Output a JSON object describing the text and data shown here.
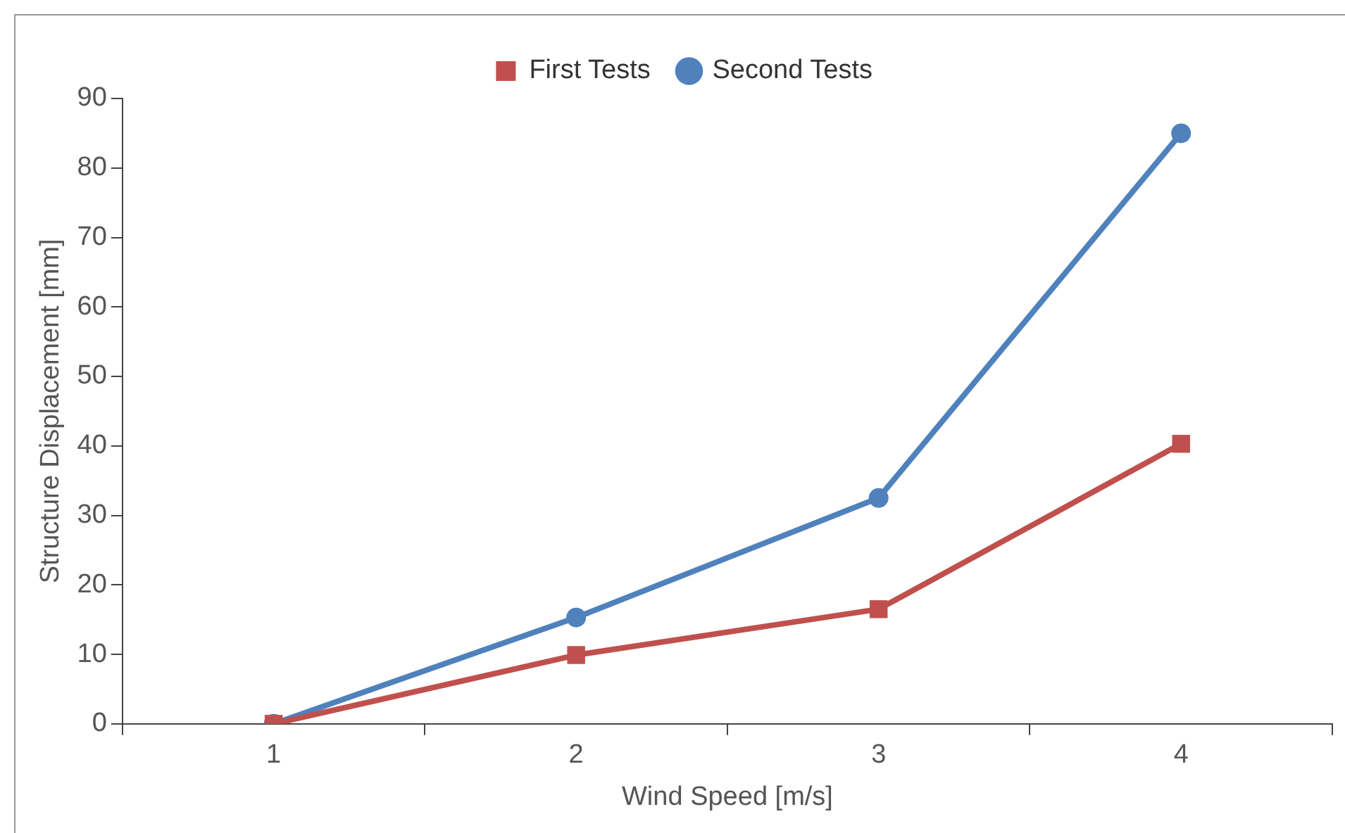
{
  "chart_data": {
    "type": "line",
    "xlabel": "Wind Speed [m/s]",
    "ylabel": "Structure Displacement [mm]",
    "categories": [
      "1",
      "2",
      "3",
      "4"
    ],
    "series": [
      {
        "name": "First Tests",
        "color": "#c0504d",
        "marker": "square",
        "values": [
          0,
          9.9,
          16.5,
          40.3
        ]
      },
      {
        "name": "Second Tests",
        "color": "#4f81bd",
        "marker": "circle",
        "values": [
          0,
          15.3,
          32.5,
          85
        ]
      }
    ],
    "ylim": [
      0,
      90
    ],
    "yticks": [
      0,
      10,
      20,
      30,
      40,
      50,
      60,
      70,
      80,
      90
    ],
    "grid": false,
    "legend": "top",
    "line_style": "solid"
  }
}
